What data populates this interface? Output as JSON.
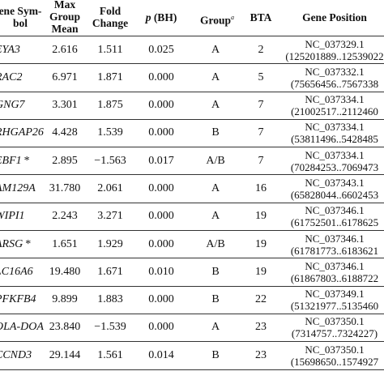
{
  "headers": {
    "gene_symbol": "ene Sym-\nbol",
    "max_group_mean": "Max\nGroup\nMean",
    "fold_change": "Fold\nChange",
    "p_bh_italic": "p",
    "p_bh_rest": " (BH)",
    "group": "Group",
    "group_sup": "a",
    "bta": "BTA",
    "gene_position": "Gene Position"
  },
  "rows": [
    {
      "gene": "EYA3",
      "ast": "",
      "mean": "2.616",
      "fold": "1.511",
      "p": "0.025",
      "group": "A",
      "bta": "2",
      "pos1": "NC_037329.1",
      "pos2": "(125201889..12539022"
    },
    {
      "gene": "RAC2",
      "ast": "",
      "mean": "6.971",
      "fold": "1.871",
      "p": "0.000",
      "group": "A",
      "bta": "5",
      "pos1": "NC_037332.1",
      "pos2": "(75656456..7567338"
    },
    {
      "gene": "GNG7",
      "ast": "",
      "mean": "3.301",
      "fold": "1.875",
      "p": "0.000",
      "group": "A",
      "bta": "7",
      "pos1": "NC_037334.1",
      "pos2": "(21002517..2112460"
    },
    {
      "gene": "RHGAP26",
      "ast": "",
      "mean": "4.428",
      "fold": "1.539",
      "p": "0.000",
      "group": "B",
      "bta": "7",
      "pos1": "NC_037334.1",
      "pos2": "(53811496..5428485"
    },
    {
      "gene": "EBF1",
      "ast": "*",
      "mean": "2.895",
      "fold": "−1.563",
      "p": "0.017",
      "group": "A/B",
      "bta": "7",
      "pos1": "NC_037334.1",
      "pos2": "(70284253..7069473"
    },
    {
      "gene": "AM129A",
      "ast": "",
      "mean": "31.780",
      "fold": "2.061",
      "p": "0.000",
      "group": "A",
      "bta": "16",
      "pos1": "NC_037343.1",
      "pos2": "(65828044..6602453"
    },
    {
      "gene": "WIPI1",
      "ast": "",
      "mean": "2.243",
      "fold": "3.271",
      "p": "0.000",
      "group": "A",
      "bta": "19",
      "pos1": "NC_037346.1",
      "pos2": "(61752501..6178625"
    },
    {
      "gene": "ARSG",
      "ast": "*",
      "mean": "1.651",
      "fold": "1.929",
      "p": "0.000",
      "group": "A/B",
      "bta": "19",
      "pos1": "NC_037346.1",
      "pos2": "(61781773..6183621"
    },
    {
      "gene": "LC16A6",
      "ast": "",
      "mean": "19.480",
      "fold": "1.671",
      "p": "0.010",
      "group": "B",
      "bta": "19",
      "pos1": "NC_037346.1",
      "pos2": "(61867803..6188722"
    },
    {
      "gene": "PFKFB4",
      "ast": "",
      "mean": "9.899",
      "fold": "1.883",
      "p": "0.000",
      "group": "B",
      "bta": "22",
      "pos1": "NC_037349.1",
      "pos2": "(51321977..5135460"
    },
    {
      "gene": "OLA-DOA",
      "ast": "",
      "mean": "23.840",
      "fold": "−1.539",
      "p": "0.000",
      "group": "A",
      "bta": "23",
      "pos1": "NC_037350.1",
      "pos2": "(7314757..7324227)"
    },
    {
      "gene": "CCND3",
      "ast": "",
      "mean": "29.144",
      "fold": "1.561",
      "p": "0.014",
      "group": "B",
      "bta": "23",
      "pos1": "NC_037350.1",
      "pos2": "(15698650..1574927"
    }
  ]
}
